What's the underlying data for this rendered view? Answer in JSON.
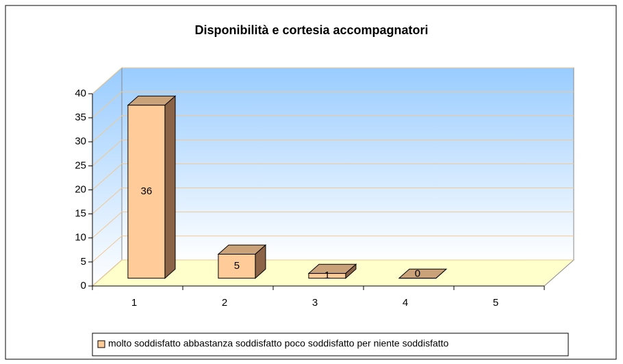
{
  "chart_data": {
    "type": "bar",
    "title": "Disponibilità e cortesia accompagnatori",
    "categories": [
      "1",
      "2",
      "3",
      "4",
      "5"
    ],
    "series": [
      {
        "name": "molto soddisfatto abbastanza soddisfatto poco soddisfatto per niente soddisfatto",
        "color": "#ffcc99",
        "values": [
          36,
          5,
          1,
          0,
          null
        ]
      }
    ],
    "ylim": [
      0,
      40
    ],
    "yticks": [
      0,
      5,
      10,
      15,
      20,
      25,
      30,
      35,
      40
    ],
    "grid": true,
    "legend": "bottom"
  }
}
